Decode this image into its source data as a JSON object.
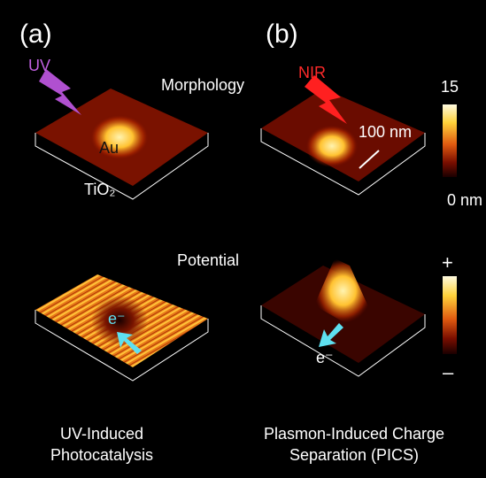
{
  "panels": {
    "a": {
      "label": "(a)",
      "light": "UV",
      "particle": "Au",
      "substrate": "TiO₂",
      "electron": "e⁻",
      "caption": [
        "UV-Induced",
        "Photocatalysis"
      ]
    },
    "b": {
      "label": "(b)",
      "light": "NIR",
      "scale": "100 nm",
      "electron": "e⁻",
      "caption": [
        "Plasmon-Induced Charge",
        "Separation (PICS)"
      ]
    }
  },
  "rows": {
    "top": "Morphology",
    "bottom": "Potential"
  },
  "colorbars": {
    "morphology": {
      "max": "15",
      "min": "0 nm"
    },
    "potential": {
      "max": "+",
      "min": "–"
    }
  }
}
